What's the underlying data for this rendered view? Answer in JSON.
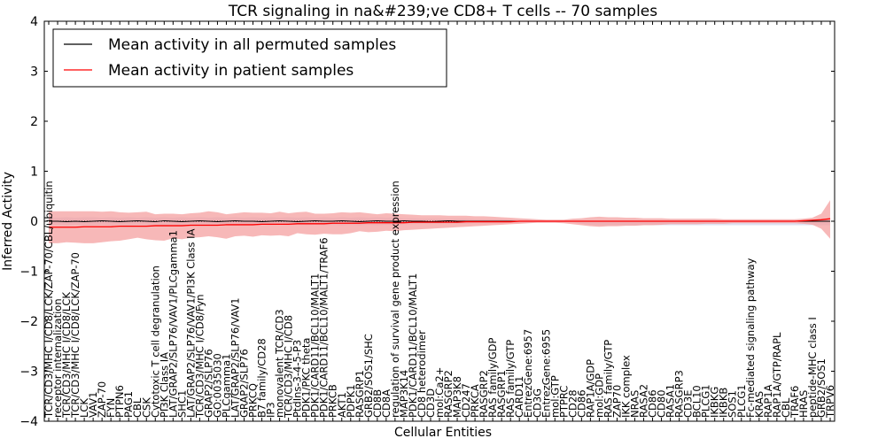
{
  "chart_data": {
    "type": "line",
    "title": "TCR signaling in na&#239;ve CD8+ T cells -- 70 samples",
    "xlabel": "Cellular Entities",
    "ylabel": "Inferred Activity",
    "ylim": [
      -4,
      4
    ],
    "yticks": [
      -4,
      -3,
      -2,
      -1,
      0,
      1,
      2,
      3,
      4
    ],
    "ytick_labels": [
      "−4",
      "−3",
      "−2",
      "−1",
      "0",
      "1",
      "2",
      "3",
      "4"
    ],
    "legend": {
      "placement": "top-left",
      "entries": [
        {
          "label": "Mean activity in all permuted samples",
          "color": "#000000"
        },
        {
          "label": "Mean activity in patient samples",
          "color": "#ff0000"
        }
      ]
    },
    "colors": {
      "patient": "#ff0000",
      "patient_band": "#f4a0a0",
      "permuted_band": "#c8cce6",
      "permuted": "#000000"
    },
    "categories": [
      "TCR/CD3/MHC I/CD8/LCK/ZAP-70/CBL/ubiquitin",
      "receptor internalization",
      "TCR/CD3/MHC I/CD8/LCK",
      "TCR/CD3/MHC I/CD8/LCK/ZAP-70",
      "LCK",
      "VAV1",
      "ZAP-70",
      "FYN",
      "PTPN6",
      "PAG1",
      "CBL",
      "CSK",
      "Cytotoxic T cell degranulation",
      "PI3K Class IA",
      "LAT/GRAP2/SLP76/VAV1/PLCgamma1",
      "SHC1",
      "LAT/GRAP2/SLP76/VAV1/PI3K Class IA",
      "TCR/CD3/MHC I/CD8/Fyn",
      "GRAP2/SLP76",
      "GO:0035030",
      "PLCgamma1",
      "LAT/GRAP2/SLP76/VAV1",
      "GRAP2/SLP76",
      "PRKCQ",
      "B7 family/CD28",
      "IP3",
      "monovalent TCR/CD3",
      "TCR/CD3/MHC I/CD8",
      "PtdIns-3-4-5-P3",
      "PDK1/PKC theta",
      "PDK1/CARD11/BCL10/MALT1",
      "PDK1/CARD11/BCL10/MALT1/TRAF6",
      "PRKCB",
      "AKT1",
      "PDPK1",
      "RASGRP1",
      "GRB2/SOS1/SHC",
      "CD8B",
      "CD8A",
      "regulation of survival gene product expression",
      "MAP3K14",
      "PDK1/CARD11/BCL10/MALT1",
      "CD8 heterodimer",
      "CD3D",
      "mol:Ca2+",
      "RASGRP2",
      "MAP3K8",
      "CD247",
      "PRKCA",
      "RASGRP2",
      "RAS family/GDP",
      "RASGRP1",
      "RAS family/GTP",
      "CARD11",
      "EntrezGene:6957",
      "CD3G",
      "EntrezGene:6955",
      "mol:GTP",
      "PTPRC",
      "CD28",
      "CD86",
      "RAP1A/GDP",
      "mol:GDP",
      "RAS family/GTP",
      "ZAP70",
      "IKK complex",
      "NRAS",
      "RASA2",
      "CD86",
      "CD80",
      "RASA1",
      "RASGRP3",
      "CD3E",
      "BCL10",
      "PLCG1",
      "IKBKG",
      "IKBKB",
      "SOS1",
      "PLCG1",
      "Fc-mediated signaling pathway",
      "KRAS",
      "RAP1A",
      "RAP1A/GTP/RAPL",
      "CBL",
      "TRAF6",
      "HRAS",
      "peptide-MHC class I",
      "GRB2/SOS1",
      "TRPV6"
    ],
    "series": [
      {
        "name": "Mean activity in patient samples",
        "role": "patient",
        "values": [
          -0.12,
          -0.12,
          -0.12,
          -0.12,
          -0.11,
          -0.11,
          -0.11,
          -0.11,
          -0.1,
          -0.1,
          -0.1,
          -0.1,
          -0.09,
          -0.09,
          -0.09,
          -0.09,
          -0.08,
          -0.08,
          -0.08,
          -0.08,
          -0.07,
          -0.07,
          -0.07,
          -0.07,
          -0.06,
          -0.06,
          -0.06,
          -0.06,
          -0.05,
          -0.05,
          -0.05,
          -0.05,
          -0.04,
          -0.04,
          -0.04,
          -0.04,
          -0.03,
          -0.03,
          -0.03,
          -0.03,
          -0.03,
          -0.02,
          -0.02,
          -0.02,
          -0.02,
          -0.02,
          -0.02,
          -0.01,
          -0.01,
          -0.01,
          -0.01,
          -0.01,
          -0.01,
          0.0,
          0.0,
          0.0,
          0.0,
          0.0,
          0.0,
          0.0,
          0.0,
          0.0,
          0.0,
          0.0,
          0.0,
          0.0,
          0.0,
          0.0,
          0.0,
          0.0,
          0.0,
          0.0,
          0.0,
          0.0,
          0.0,
          0.0,
          0.0,
          0.0,
          0.0,
          0.0,
          0.0,
          0.0,
          0.0,
          0.0,
          0.0,
          0.01,
          0.02,
          0.03,
          0.05
        ],
        "upper": [
          0.2,
          0.2,
          0.2,
          0.2,
          0.2,
          0.2,
          0.19,
          0.2,
          0.18,
          0.17,
          0.18,
          0.19,
          0.14,
          0.15,
          0.15,
          0.14,
          0.16,
          0.17,
          0.2,
          0.18,
          0.14,
          0.16,
          0.18,
          0.17,
          0.17,
          0.16,
          0.19,
          0.16,
          0.18,
          0.19,
          0.15,
          0.15,
          0.16,
          0.18,
          0.17,
          0.18,
          0.16,
          0.14,
          0.16,
          0.15,
          0.14,
          0.13,
          0.12,
          0.12,
          0.12,
          0.11,
          0.11,
          0.11,
          0.1,
          0.1,
          0.09,
          0.08,
          0.07,
          0.06,
          0.05,
          0.04,
          0.03,
          0.03,
          0.03,
          0.05,
          0.06,
          0.08,
          0.09,
          0.08,
          0.08,
          0.07,
          0.07,
          0.06,
          0.06,
          0.06,
          0.05,
          0.05,
          0.05,
          0.05,
          0.05,
          0.05,
          0.04,
          0.04,
          0.04,
          0.04,
          0.04,
          0.04,
          0.04,
          0.04,
          0.04,
          0.05,
          0.07,
          0.15,
          0.42
        ],
        "lower": [
          -0.44,
          -0.44,
          -0.42,
          -0.43,
          -0.44,
          -0.44,
          -0.42,
          -0.4,
          -0.39,
          -0.36,
          -0.33,
          -0.36,
          -0.38,
          -0.39,
          -0.34,
          -0.36,
          -0.33,
          -0.32,
          -0.3,
          -0.32,
          -0.35,
          -0.3,
          -0.29,
          -0.31,
          -0.28,
          -0.29,
          -0.28,
          -0.3,
          -0.24,
          -0.26,
          -0.27,
          -0.25,
          -0.26,
          -0.26,
          -0.24,
          -0.2,
          -0.22,
          -0.21,
          -0.19,
          -0.2,
          -0.18,
          -0.17,
          -0.16,
          -0.15,
          -0.14,
          -0.13,
          -0.12,
          -0.11,
          -0.1,
          -0.09,
          -0.08,
          -0.07,
          -0.06,
          -0.05,
          -0.04,
          -0.03,
          -0.03,
          -0.03,
          -0.04,
          -0.06,
          -0.08,
          -0.1,
          -0.11,
          -0.1,
          -0.1,
          -0.09,
          -0.09,
          -0.08,
          -0.08,
          -0.07,
          -0.06,
          -0.06,
          -0.06,
          -0.06,
          -0.05,
          -0.05,
          -0.05,
          -0.04,
          -0.04,
          -0.04,
          -0.04,
          -0.04,
          -0.04,
          -0.04,
          -0.04,
          -0.05,
          -0.07,
          -0.15,
          -0.35
        ]
      },
      {
        "name": "Mean activity in all permuted samples",
        "role": "permuted",
        "values": [
          0.0,
          0.0,
          -0.01,
          0.0,
          -0.01,
          0.0,
          0.01,
          0.0,
          -0.01,
          0.0,
          0.01,
          0.0,
          -0.01,
          0.01,
          0.0,
          -0.01,
          0.0,
          0.01,
          0.0,
          -0.01,
          0.0,
          0.01,
          0.0,
          0.0,
          -0.01,
          0.0,
          0.01,
          0.0,
          -0.01,
          0.0,
          0.01,
          0.0,
          0.0,
          0.01,
          0.0,
          -0.01,
          0.0,
          0.01,
          0.0,
          0.0,
          0.01,
          0.0,
          0.0,
          -0.01,
          0.0,
          0.01,
          0.0,
          0.0,
          0.0,
          0.0,
          0.0,
          0.0,
          0.0,
          0.0,
          0.0,
          0.0,
          0.0,
          0.0,
          0.0,
          0.0,
          0.0,
          0.0,
          0.0,
          0.0,
          0.0,
          0.0,
          0.0,
          0.0,
          0.0,
          0.0,
          0.0,
          0.0,
          0.0,
          0.0,
          0.0,
          0.0,
          0.0,
          0.0,
          0.0,
          0.0,
          0.0,
          0.0,
          0.0,
          0.0,
          0.0,
          0.0,
          0.0,
          0.0,
          0.0
        ],
        "upper": [
          0.08,
          0.07,
          0.08,
          0.07,
          0.08,
          0.08,
          0.07,
          0.08,
          0.07,
          0.08,
          0.07,
          0.08,
          0.07,
          0.08,
          0.07,
          0.08,
          0.07,
          0.08,
          0.07,
          0.08,
          0.07,
          0.08,
          0.07,
          0.08,
          0.07,
          0.08,
          0.07,
          0.08,
          0.07,
          0.08,
          0.07,
          0.08,
          0.07,
          0.08,
          0.07,
          0.08,
          0.07,
          0.08,
          0.07,
          0.08,
          0.06,
          0.06,
          0.05,
          0.05,
          0.05,
          0.05,
          0.05,
          0.05,
          0.04,
          0.04,
          0.04,
          0.04,
          0.03,
          0.03,
          0.03,
          0.02,
          0.02,
          0.02,
          0.02,
          0.02,
          0.02,
          0.02,
          0.02,
          0.02,
          0.02,
          0.02,
          0.02,
          0.02,
          0.02,
          0.02,
          0.02,
          0.02,
          0.02,
          0.02,
          0.02,
          0.02,
          0.02,
          0.02,
          0.02,
          0.02,
          0.02,
          0.02,
          0.02,
          0.02,
          0.02,
          0.02,
          0.02,
          0.02,
          0.02
        ],
        "lower": [
          -0.08,
          -0.07,
          -0.08,
          -0.07,
          -0.08,
          -0.08,
          -0.07,
          -0.08,
          -0.07,
          -0.08,
          -0.07,
          -0.08,
          -0.07,
          -0.08,
          -0.07,
          -0.08,
          -0.07,
          -0.08,
          -0.07,
          -0.08,
          -0.07,
          -0.08,
          -0.07,
          -0.08,
          -0.07,
          -0.08,
          -0.07,
          -0.08,
          -0.07,
          -0.08,
          -0.07,
          -0.08,
          -0.07,
          -0.08,
          -0.07,
          -0.08,
          -0.07,
          -0.08,
          -0.07,
          -0.08,
          -0.06,
          -0.06,
          -0.05,
          -0.05,
          -0.05,
          -0.05,
          -0.05,
          -0.05,
          -0.04,
          -0.04,
          -0.04,
          -0.04,
          -0.03,
          -0.03,
          -0.03,
          -0.02,
          -0.02,
          -0.02,
          -0.02,
          -0.02,
          -0.05,
          -0.07,
          -0.08,
          -0.08,
          -0.08,
          -0.08,
          -0.08,
          -0.08,
          -0.08,
          -0.08,
          -0.08,
          -0.08,
          -0.08,
          -0.08,
          -0.08,
          -0.08,
          -0.08,
          -0.08,
          -0.08,
          -0.08,
          -0.08,
          -0.08,
          -0.08,
          -0.08,
          -0.08,
          -0.08,
          -0.08,
          -0.08,
          -0.08
        ]
      }
    ]
  }
}
